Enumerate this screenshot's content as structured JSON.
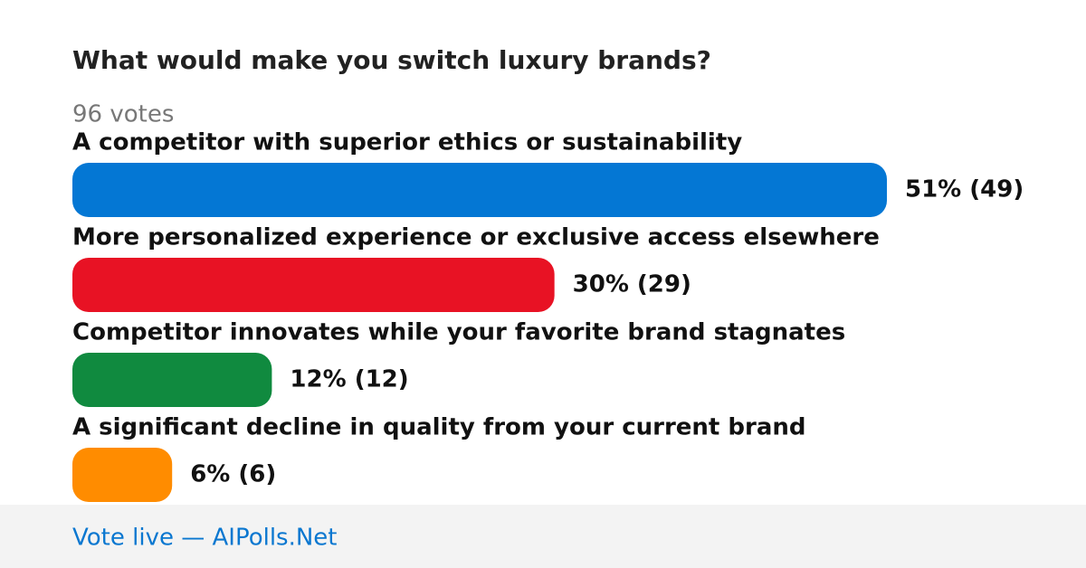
{
  "poll": {
    "title": "What would make you switch luxury brands?",
    "total_label": "96 votes",
    "options": [
      {
        "label": "A competitor with superior ethics or sustainability",
        "votes": 49,
        "value_label": "51% (49)",
        "color": "#0477d4"
      },
      {
        "label": "More personalized experience or exclusive access elsewhere",
        "votes": 29,
        "value_label": "30% (29)",
        "color": "#e81224"
      },
      {
        "label": "Competitor innovates while your favorite brand stagnates",
        "votes": 12,
        "value_label": "12% (12)",
        "color": "#108a3f"
      },
      {
        "label": "A significant decline in quality from your current brand",
        "votes": 6,
        "value_label": "6% (6)",
        "color": "#ff8c00"
      }
    ],
    "footer": "Vote live — AIPolls.Net"
  }
}
